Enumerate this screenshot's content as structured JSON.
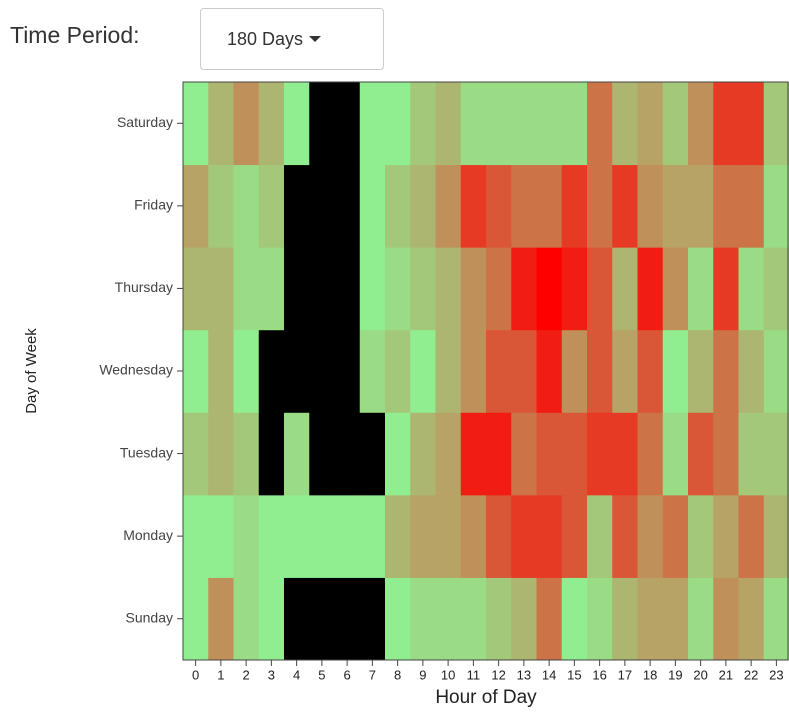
{
  "controls": {
    "label": "Time Period:",
    "selected": "180 Days"
  },
  "chart_data": {
    "type": "heatmap",
    "x_label": "Hour of Day",
    "y_label": "Day of Week",
    "categories": [
      "0",
      "1",
      "2",
      "3",
      "4",
      "5",
      "6",
      "7",
      "8",
      "9",
      "10",
      "11",
      "12",
      "13",
      "14",
      "15",
      "16",
      "17",
      "18",
      "19",
      "20",
      "21",
      "22",
      "23"
    ],
    "y_categories": [
      "Sunday",
      "Monday",
      "Tuesday",
      "Wednesday",
      "Thursday",
      "Friday",
      "Saturday"
    ],
    "values": [
      [
        0,
        5,
        1,
        0,
        null,
        null,
        null,
        null,
        0,
        1,
        1,
        1,
        2,
        3,
        6,
        0,
        1,
        3,
        4,
        4,
        1,
        5,
        4,
        1
      ],
      [
        0,
        0,
        1,
        0,
        0,
        0,
        0,
        0,
        3,
        4,
        4,
        5,
        7,
        8,
        8,
        7,
        2,
        7,
        5,
        6,
        2,
        4,
        6,
        3
      ],
      [
        2,
        3,
        2,
        null,
        1,
        null,
        null,
        null,
        0,
        3,
        4,
        9,
        9,
        6,
        7,
        7,
        8,
        8,
        6,
        1,
        7,
        6,
        2,
        2
      ],
      [
        0,
        3,
        0,
        null,
        null,
        null,
        null,
        1,
        2,
        0,
        3,
        5,
        7,
        7,
        9,
        5,
        7,
        4,
        7,
        0,
        3,
        6,
        3,
        1
      ],
      [
        3,
        3,
        1,
        1,
        null,
        null,
        null,
        0,
        1,
        2,
        3,
        5,
        6,
        9,
        10,
        9,
        7,
        3,
        9,
        5,
        1,
        8,
        1,
        2
      ],
      [
        4,
        2,
        1,
        2,
        null,
        null,
        null,
        0,
        2,
        3,
        5,
        8,
        7,
        6,
        6,
        8,
        6,
        8,
        5,
        4,
        4,
        6,
        6,
        1
      ],
      [
        0,
        3,
        5,
        3,
        0,
        null,
        null,
        0,
        0,
        2,
        3,
        1,
        1,
        1,
        1,
        1,
        6,
        3,
        4,
        2,
        5,
        8,
        8,
        2
      ]
    ],
    "zlim": [
      0,
      10
    ],
    "colors": [
      "#90ee90",
      "#c0905a",
      "#ff0000"
    ],
    "null_color": "#000000"
  }
}
